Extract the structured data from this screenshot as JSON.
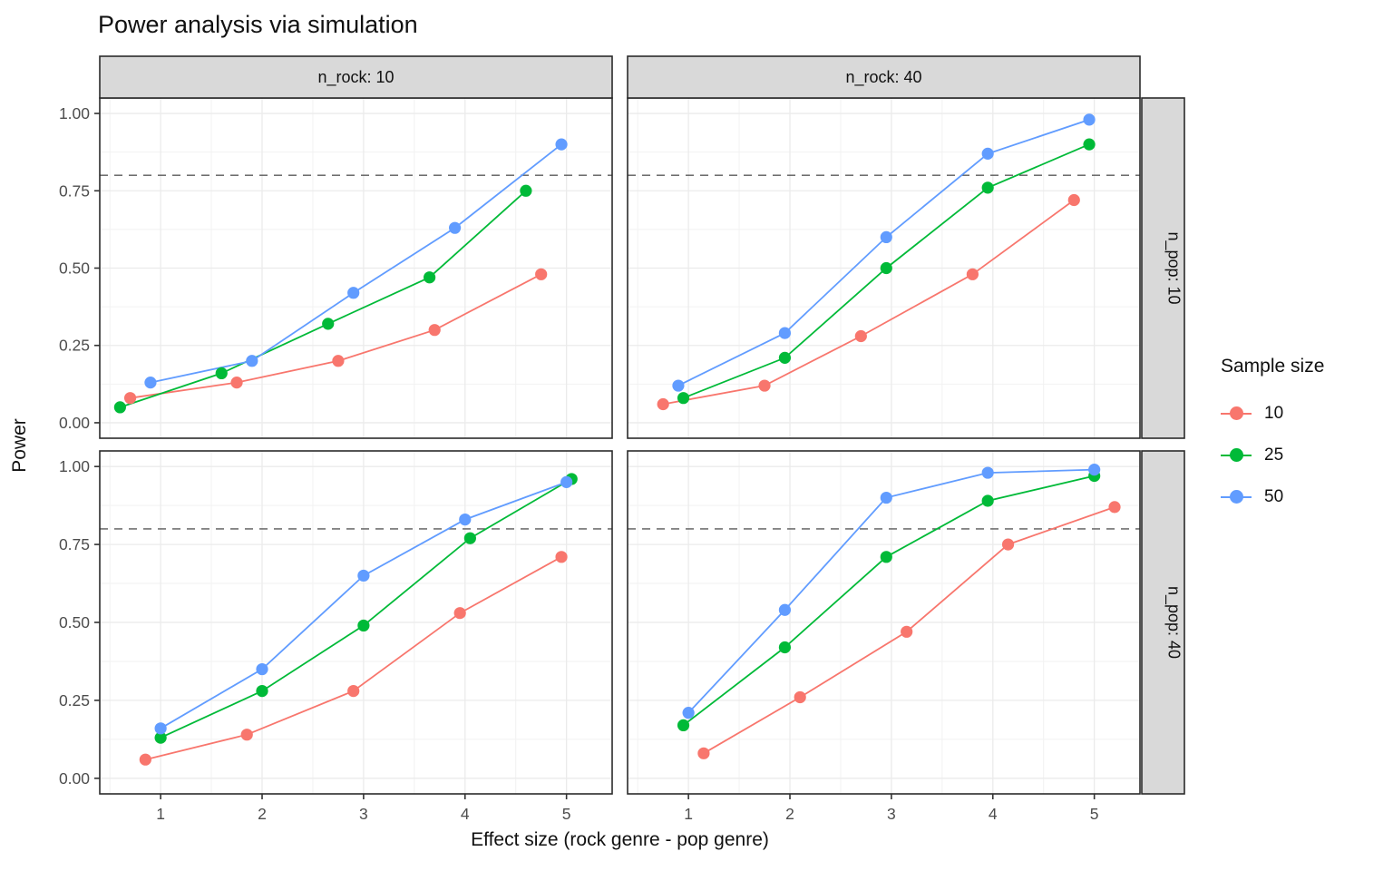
{
  "title": "Power analysis via simulation",
  "axes": {
    "x_title": "Effect size (rock genre - pop genre)",
    "y_title": "Power",
    "x_ticks": [
      "1",
      "2",
      "3",
      "4",
      "5"
    ],
    "x_tick_values": [
      1,
      2,
      3,
      4,
      5
    ],
    "y_ticks": [
      "0.00",
      "0.25",
      "0.50",
      "0.75",
      "1.00"
    ],
    "y_tick_values": [
      0,
      0.25,
      0.5,
      0.75,
      1.0
    ],
    "x_range": [
      0.4,
      5.45
    ],
    "y_range": [
      -0.05,
      1.05
    ]
  },
  "facets": {
    "col_labels": [
      "n_rock: 10",
      "n_rock: 40"
    ],
    "row_labels": [
      "n_pop: 10",
      "n_pop: 40"
    ]
  },
  "legend": {
    "title": "Sample size",
    "entries": [
      {
        "label": "10",
        "color": "#F8766D"
      },
      {
        "label": "25",
        "color": "#00BA38"
      },
      {
        "label": "50",
        "color": "#619CFF"
      }
    ]
  },
  "colors": {
    "sample_10": "#F8766D",
    "sample_25": "#00BA38",
    "sample_50": "#619CFF",
    "strip_bg": "#D9D9D9",
    "grid_major": "#EBEBEB",
    "grid_minor": "#F2F2F2",
    "panel_border": "#2b2b2b",
    "ref_line": "#595959",
    "tick_label": "#4d4d4d"
  },
  "chart_data": {
    "type": "line",
    "title": "Power analysis via simulation",
    "xlabel": "Effect size (rock genre - pop genre)",
    "ylabel": "Power",
    "legend_title": "Sample size",
    "legend_position": "right",
    "grid": true,
    "reference_line_y": 0.8,
    "reference_line_style": "dashed",
    "xlim": [
      0.4,
      5.45
    ],
    "ylim": [
      -0.05,
      1.05
    ],
    "note": "points horizontally jittered around effect sizes 1-5",
    "panels": [
      {
        "col": "n_rock: 10",
        "row": "n_pop: 10",
        "series": [
          {
            "name": "10",
            "color": "#F8766D",
            "points": [
              [
                0.7,
                0.08
              ],
              [
                1.75,
                0.13
              ],
              [
                2.75,
                0.2
              ],
              [
                3.7,
                0.3
              ],
              [
                4.75,
                0.48
              ]
            ]
          },
          {
            "name": "25",
            "color": "#00BA38",
            "points": [
              [
                0.6,
                0.05
              ],
              [
                1.6,
                0.16
              ],
              [
                2.65,
                0.32
              ],
              [
                3.65,
                0.47
              ],
              [
                4.6,
                0.75
              ]
            ]
          },
          {
            "name": "50",
            "color": "#619CFF",
            "points": [
              [
                0.9,
                0.13
              ],
              [
                1.9,
                0.2
              ],
              [
                2.9,
                0.42
              ],
              [
                3.9,
                0.63
              ],
              [
                4.95,
                0.9
              ]
            ]
          }
        ]
      },
      {
        "col": "n_rock: 40",
        "row": "n_pop: 10",
        "series": [
          {
            "name": "10",
            "color": "#F8766D",
            "points": [
              [
                0.75,
                0.06
              ],
              [
                1.75,
                0.12
              ],
              [
                2.7,
                0.28
              ],
              [
                3.8,
                0.48
              ],
              [
                4.8,
                0.72
              ]
            ]
          },
          {
            "name": "25",
            "color": "#00BA38",
            "points": [
              [
                0.95,
                0.08
              ],
              [
                1.95,
                0.21
              ],
              [
                2.95,
                0.5
              ],
              [
                3.95,
                0.76
              ],
              [
                4.95,
                0.9
              ]
            ]
          },
          {
            "name": "50",
            "color": "#619CFF",
            "points": [
              [
                0.9,
                0.12
              ],
              [
                1.95,
                0.29
              ],
              [
                2.95,
                0.6
              ],
              [
                3.95,
                0.87
              ],
              [
                4.95,
                0.98
              ]
            ]
          }
        ]
      },
      {
        "col": "n_rock: 10",
        "row": "n_pop: 40",
        "series": [
          {
            "name": "10",
            "color": "#F8766D",
            "points": [
              [
                0.85,
                0.06
              ],
              [
                1.85,
                0.14
              ],
              [
                2.9,
                0.28
              ],
              [
                3.95,
                0.53
              ],
              [
                4.95,
                0.71
              ]
            ]
          },
          {
            "name": "25",
            "color": "#00BA38",
            "points": [
              [
                1.0,
                0.13
              ],
              [
                2.0,
                0.28
              ],
              [
                3.0,
                0.49
              ],
              [
                4.05,
                0.77
              ],
              [
                5.05,
                0.96
              ]
            ]
          },
          {
            "name": "50",
            "color": "#619CFF",
            "points": [
              [
                1.0,
                0.16
              ],
              [
                2.0,
                0.35
              ],
              [
                3.0,
                0.65
              ],
              [
                4.0,
                0.83
              ],
              [
                5.0,
                0.95
              ]
            ]
          }
        ]
      },
      {
        "col": "n_rock: 40",
        "row": "n_pop: 40",
        "series": [
          {
            "name": "10",
            "color": "#F8766D",
            "points": [
              [
                1.15,
                0.08
              ],
              [
                2.1,
                0.26
              ],
              [
                3.15,
                0.47
              ],
              [
                4.15,
                0.75
              ],
              [
                5.2,
                0.87
              ]
            ]
          },
          {
            "name": "25",
            "color": "#00BA38",
            "points": [
              [
                0.95,
                0.17
              ],
              [
                1.95,
                0.42
              ],
              [
                2.95,
                0.71
              ],
              [
                3.95,
                0.89
              ],
              [
                5.0,
                0.97
              ]
            ]
          },
          {
            "name": "50",
            "color": "#619CFF",
            "points": [
              [
                1.0,
                0.21
              ],
              [
                1.95,
                0.54
              ],
              [
                2.95,
                0.9
              ],
              [
                3.95,
                0.98
              ],
              [
                5.0,
                0.99
              ]
            ]
          }
        ]
      }
    ]
  }
}
